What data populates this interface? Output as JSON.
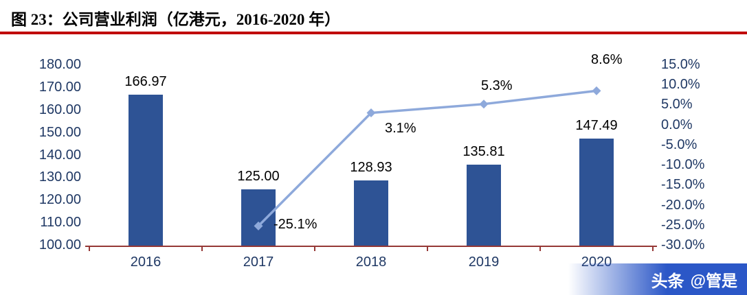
{
  "title": "图 23：公司营业利润（亿港元，2016-2020 年）",
  "watermark": {
    "brand": "头条",
    "user": "@管是"
  },
  "colors": {
    "bar": "#2E5395",
    "line": "#8EA9DB",
    "axis_text": "#1F3864",
    "value_text": "#000000",
    "axis_line": "#953735",
    "title_rule": "#C00000",
    "watermark_bg": "#2B57C7",
    "watermark_text": "#FFFFFF"
  },
  "chart_data": {
    "type": "bar+line",
    "title": "图 23：公司营业利润（亿港元，2016-2020 年）",
    "categories": [
      "2016",
      "2017",
      "2018",
      "2019",
      "2020"
    ],
    "series": [
      {
        "id": "operating-profit-bars",
        "type": "bar",
        "axis": "left",
        "values": [
          166.97,
          125.0,
          128.93,
          135.81,
          147.49
        ],
        "labels": [
          "166.97",
          "125.00",
          "128.93",
          "135.81",
          "147.49"
        ]
      },
      {
        "id": "growth-rate-line",
        "type": "line",
        "axis": "right",
        "values": [
          null,
          -25.1,
          3.1,
          5.3,
          8.6
        ],
        "labels": [
          null,
          "-25.1%",
          "3.1%",
          "5.3%",
          "8.6%"
        ]
      }
    ],
    "left_axis": {
      "min": 100,
      "max": 180,
      "step": 10,
      "ticks": [
        "180.00",
        "170.00",
        "160.00",
        "150.00",
        "140.00",
        "130.00",
        "120.00",
        "110.00",
        "100.00"
      ]
    },
    "right_axis": {
      "min": -30,
      "max": 15,
      "step": 5,
      "ticks": [
        "15.0%",
        "10.0%",
        "5.0%",
        "0.0%",
        "-5.0%",
        "-10.0%",
        "-15.0%",
        "-20.0%",
        "-25.0%",
        "-30.0%"
      ]
    },
    "grid": false,
    "legend": "none"
  }
}
